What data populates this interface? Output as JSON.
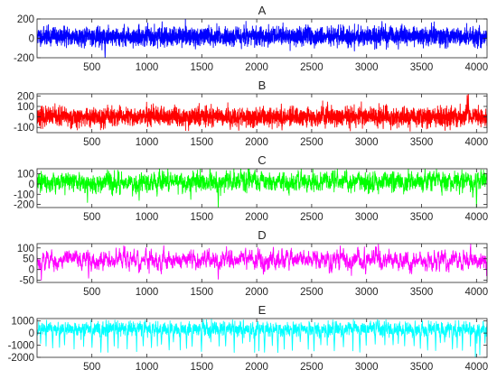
{
  "chart_data": [
    {
      "type": "line",
      "title": "A",
      "xlabel": "",
      "ylabel": "",
      "xlim": [
        1,
        4096
      ],
      "ylim": [
        -200,
        200
      ],
      "xticks": [
        500,
        1000,
        1500,
        2000,
        2500,
        3000,
        3500,
        4000
      ],
      "yticks": [
        -200,
        0,
        200
      ],
      "grid": false,
      "series": [
        {
          "color": "#0000ff",
          "n_points": 4096,
          "signal_description": "broadband noise centred on about 20, typical excursions -80 to 100",
          "mean": 20,
          "amplitude": 45,
          "smoothness": 0.15,
          "spikes": [
            [
              620,
              -200
            ],
            [
              3140,
              175
            ],
            [
              1810,
              120
            ],
            [
              2470,
              120
            ]
          ],
          "seed": 11
        }
      ]
    },
    {
      "type": "line",
      "title": "B",
      "xlabel": "",
      "ylabel": "",
      "xlim": [
        1,
        4096
      ],
      "ylim": [
        -150,
        220
      ],
      "xticks": [
        500,
        1000,
        1500,
        2000,
        2500,
        3000,
        3500,
        4000
      ],
      "yticks": [
        -100,
        0,
        100,
        200
      ],
      "grid": false,
      "series": [
        {
          "color": "#ff0000",
          "n_points": 4096,
          "signal_description": "noise centred near 0, typical excursions -100 to 100, peak about 230 near 3930",
          "mean": 0,
          "amplitude": 42,
          "smoothness": 0.2,
          "spikes": [
            [
              3925,
              230
            ],
            [
              3915,
              205
            ],
            [
              2230,
              -125
            ],
            [
              1760,
              -120
            ]
          ],
          "seed": 23
        }
      ]
    },
    {
      "type": "line",
      "title": "C",
      "xlabel": "",
      "ylabel": "",
      "xlim": [
        1,
        4096
      ],
      "ylim": [
        -230,
        150
      ],
      "xticks": [
        500,
        1000,
        1500,
        2000,
        2500,
        3000,
        3500,
        4000
      ],
      "yticks": [
        -200,
        -100,
        0,
        100
      ],
      "grid": false,
      "series": [
        {
          "color": "#00ff00",
          "n_points": 4096,
          "signal_description": "oscillating signal around 20 with frequent negative dips to about -200",
          "mean": 20,
          "amplitude": 45,
          "smoothness": 0.65,
          "spikes": [
            [
              1650,
              -230
            ],
            [
              4000,
              -230
            ],
            [
              460,
              -180
            ],
            [
              930,
              -160
            ],
            [
              1400,
              -150
            ],
            [
              1760,
              130
            ],
            [
              4040,
              140
            ],
            [
              150,
              110
            ]
          ],
          "seed": 37
        }
      ]
    },
    {
      "type": "line",
      "title": "D",
      "xlabel": "",
      "ylabel": "",
      "xlim": [
        1,
        4096
      ],
      "ylim": [
        -60,
        120
      ],
      "xticks": [
        500,
        1000,
        1500,
        2000,
        2500,
        3000,
        3500,
        4000
      ],
      "yticks": [
        -50,
        0,
        50,
        100
      ],
      "grid": false,
      "series": [
        {
          "color": "#ff00ff",
          "n_points": 4096,
          "signal_description": "smooth oscillation centred near 45, range about -50 to 110",
          "mean": 45,
          "amplitude": 22,
          "smoothness": 0.8,
          "spikes": [
            [
              40,
              -50
            ],
            [
              470,
              -40
            ],
            [
              1650,
              -45
            ],
            [
              2760,
              110
            ],
            [
              2980,
              105
            ],
            [
              720,
              100
            ],
            [
              1040,
              95
            ]
          ],
          "seed": 53
        }
      ]
    },
    {
      "type": "line",
      "title": "E",
      "xlabel": "",
      "ylabel": "",
      "xlim": [
        1,
        4096
      ],
      "ylim": [
        -2000,
        1200
      ],
      "xticks": [
        500,
        1000,
        1500,
        2000,
        2500,
        3000,
        3500,
        4000
      ],
      "yticks": [
        -2000,
        -1000,
        0,
        1000
      ],
      "grid": false,
      "series": [
        {
          "color": "#00ffff",
          "n_points": 4096,
          "signal_description": "baseline near 300 with regular sharp downward spikes to about -1500",
          "mean": 350,
          "amplitude": 260,
          "smoothness": 0.5,
          "negative_spike_period": 62,
          "negative_spike_depth": [
            -1600,
            -700
          ],
          "spikes": [
            [
              3990,
              -2000
            ],
            [
              4030,
              -1800
            ]
          ],
          "seed": 71
        }
      ]
    }
  ]
}
